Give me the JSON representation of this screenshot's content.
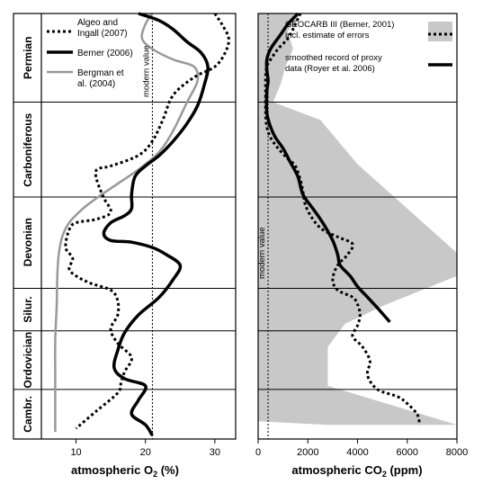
{
  "chart_data": [
    {
      "type": "line",
      "id": "o2",
      "xlabel_prefix": "atmospheric O",
      "xlabel_sub": "2",
      "xlabel_suffix": " (%)",
      "xlim": [
        5,
        33
      ],
      "xticks": [
        10,
        20,
        30
      ],
      "periods": [
        "Permian",
        "Carboniferous",
        "Devonian",
        "Silur.",
        "Ordovician",
        "Cambr."
      ],
      "modern_value": {
        "x": 21,
        "label": "modern value"
      },
      "series": [
        {
          "name": "Algeo and Ingall (2007)",
          "style": "dotted",
          "color": "#000000",
          "points": [
            [
              30,
              0.0
            ],
            [
              31,
              0.6
            ],
            [
              32,
              1.4
            ],
            [
              31.5,
              2.2
            ],
            [
              30,
              3.0
            ],
            [
              27,
              3.6
            ],
            [
              24,
              4.6
            ],
            [
              22.5,
              6.0
            ],
            [
              21,
              7.2
            ],
            [
              19,
              8.0
            ],
            [
              15,
              8.6
            ],
            [
              13,
              8.8
            ],
            [
              13,
              9.4
            ],
            [
              14,
              10.4
            ],
            [
              15,
              11.2
            ],
            [
              13,
              11.6
            ],
            [
              10,
              11.8
            ],
            [
              9,
              12.2
            ],
            [
              8.5,
              13.2
            ],
            [
              9.5,
              13.8
            ],
            [
              9,
              14.4
            ],
            [
              10,
              14.8
            ],
            [
              12,
              15.2
            ],
            [
              15,
              15.6
            ],
            [
              16,
              16.2
            ],
            [
              16,
              17.0
            ],
            [
              15,
              17.8
            ],
            [
              16,
              18.6
            ],
            [
              18,
              19.4
            ],
            [
              17,
              20.2
            ],
            [
              16.5,
              20.8
            ],
            [
              16,
              21.4
            ],
            [
              13,
              22.4
            ],
            [
              10,
              23.4
            ]
          ]
        },
        {
          "name": "Berner (2006)",
          "style": "solid",
          "color": "#000000",
          "points": [
            [
              19,
              0.0
            ],
            [
              22,
              0.4
            ],
            [
              24,
              0.9
            ],
            [
              26,
              1.6
            ],
            [
              28,
              2.2
            ],
            [
              29,
              3.0
            ],
            [
              28.5,
              4.0
            ],
            [
              27.5,
              5.2
            ],
            [
              26,
              6.2
            ],
            [
              24,
              7.2
            ],
            [
              22,
              8.0
            ],
            [
              20,
              8.6
            ],
            [
              18.5,
              9.2
            ],
            [
              18,
              10.2
            ],
            [
              18,
              11.0
            ],
            [
              17,
              11.4
            ],
            [
              15,
              11.8
            ],
            [
              14,
              12.4
            ],
            [
              15,
              12.8
            ],
            [
              18,
              12.9
            ],
            [
              21,
              13.2
            ],
            [
              23,
              13.6
            ],
            [
              25,
              14.2
            ],
            [
              24,
              15.0
            ],
            [
              22,
              16.0
            ],
            [
              19,
              17.0
            ],
            [
              17,
              18.0
            ],
            [
              16,
              19.0
            ],
            [
              15.5,
              20.0
            ],
            [
              17,
              20.6
            ],
            [
              20,
              21.0
            ],
            [
              19,
              21.8
            ],
            [
              18,
              22.6
            ],
            [
              20,
              23.2
            ],
            [
              21,
              23.8
            ]
          ]
        },
        {
          "name": "Bergman et al. (2004)",
          "style": "solid",
          "color": "#999999",
          "points": [
            [
              21,
              0.0
            ],
            [
              20,
              0.6
            ],
            [
              19.5,
              1.4
            ],
            [
              21,
              2.0
            ],
            [
              24,
              2.6
            ],
            [
              27,
              3.0
            ],
            [
              27.5,
              3.8
            ],
            [
              26,
              5.0
            ],
            [
              24,
              6.6
            ],
            [
              22,
              7.8
            ],
            [
              19,
              8.8
            ],
            [
              16,
              9.6
            ],
            [
              13,
              10.4
            ],
            [
              11,
              11.0
            ],
            [
              9,
              11.8
            ],
            [
              8,
              12.6
            ],
            [
              7.5,
              13.6
            ],
            [
              7.3,
              14.8
            ],
            [
              7.2,
              16.5
            ],
            [
              7,
              18.5
            ],
            [
              7,
              20.5
            ],
            [
              7,
              22.5
            ],
            [
              7,
              23.6
            ]
          ]
        }
      ]
    },
    {
      "type": "line",
      "id": "co2",
      "xlabel_prefix": "atmospheric CO",
      "xlabel_sub": "2",
      "xlabel_suffix": " (ppm)",
      "xlim": [
        0,
        8000
      ],
      "xticks": [
        0,
        2000,
        4000,
        6000,
        8000
      ],
      "modern_value": {
        "x": 400,
        "label": "modern value"
      },
      "error_band": {
        "upper": [
          [
            1700,
            0.0
          ],
          [
            1200,
            1.0
          ],
          [
            1400,
            2.0
          ],
          [
            1100,
            3.0
          ],
          [
            900,
            4.0
          ],
          [
            600,
            5.0
          ],
          [
            2500,
            6.0
          ],
          [
            4000,
            8.5
          ],
          [
            8000,
            13.5
          ],
          [
            8000,
            14.8
          ],
          [
            5000,
            16.5
          ],
          [
            3500,
            17.5
          ],
          [
            2800,
            18.8
          ],
          [
            2800,
            21.0
          ],
          [
            8000,
            23.2
          ]
        ],
        "lower": [
          [
            0,
            0.0
          ],
          [
            0,
            5.0
          ],
          [
            0,
            10.0
          ],
          [
            0,
            15.0
          ],
          [
            0,
            20.0
          ],
          [
            0,
            23.0
          ],
          [
            2800,
            23.2
          ]
        ]
      },
      "series": [
        {
          "name": "GEOCARB III (Berner, 2001) incl. estimate of errors",
          "style": "dotted",
          "color": "#000000",
          "points": [
            [
              1700,
              0.0
            ],
            [
              1500,
              0.6
            ],
            [
              1200,
              1.4
            ],
            [
              800,
              2.0
            ],
            [
              500,
              2.6
            ],
            [
              350,
              3.0
            ],
            [
              300,
              3.6
            ],
            [
              300,
              4.4
            ],
            [
              300,
              5.6
            ],
            [
              350,
              6.4
            ],
            [
              500,
              7.0
            ],
            [
              800,
              7.6
            ],
            [
              1200,
              8.2
            ],
            [
              1500,
              8.6
            ],
            [
              1700,
              9.4
            ],
            [
              1800,
              10.0
            ],
            [
              1900,
              10.8
            ],
            [
              2200,
              11.6
            ],
            [
              2600,
              12.2
            ],
            [
              3200,
              12.6
            ],
            [
              3800,
              13.0
            ],
            [
              3600,
              13.6
            ],
            [
              3200,
              14.2
            ],
            [
              3000,
              15.0
            ],
            [
              3200,
              15.6
            ],
            [
              3800,
              16.0
            ],
            [
              4000,
              16.4
            ],
            [
              4100,
              17.0
            ],
            [
              4000,
              17.6
            ],
            [
              3800,
              18.2
            ],
            [
              4200,
              18.8
            ],
            [
              4500,
              19.6
            ],
            [
              4400,
              20.4
            ],
            [
              4800,
              21.2
            ],
            [
              5600,
              21.6
            ],
            [
              6000,
              22.0
            ],
            [
              6400,
              22.6
            ],
            [
              6500,
              23.2
            ]
          ]
        },
        {
          "name": "smoothed record of proxy data (Royer et al. 2006)",
          "style": "solid",
          "color": "#000000",
          "points": [
            [
              1600,
              0.0
            ],
            [
              1200,
              0.6
            ],
            [
              900,
              1.2
            ],
            [
              500,
              2.0
            ],
            [
              350,
              2.6
            ],
            [
              350,
              3.2
            ],
            [
              400,
              3.8
            ],
            [
              350,
              4.4
            ],
            [
              350,
              5.6
            ],
            [
              500,
              6.4
            ],
            [
              700,
              7.0
            ],
            [
              1000,
              7.6
            ],
            [
              1300,
              8.4
            ],
            [
              1600,
              9.2
            ],
            [
              1800,
              10.2
            ],
            [
              2200,
              11.0
            ],
            [
              2600,
              11.8
            ],
            [
              3000,
              12.8
            ],
            [
              3200,
              13.6
            ],
            [
              3300,
              14.2
            ],
            [
              3700,
              14.8
            ],
            [
              4000,
              15.4
            ],
            [
              4400,
              16.0
            ],
            [
              4800,
              16.6
            ],
            [
              5300,
              17.4
            ]
          ]
        }
      ]
    }
  ]
}
